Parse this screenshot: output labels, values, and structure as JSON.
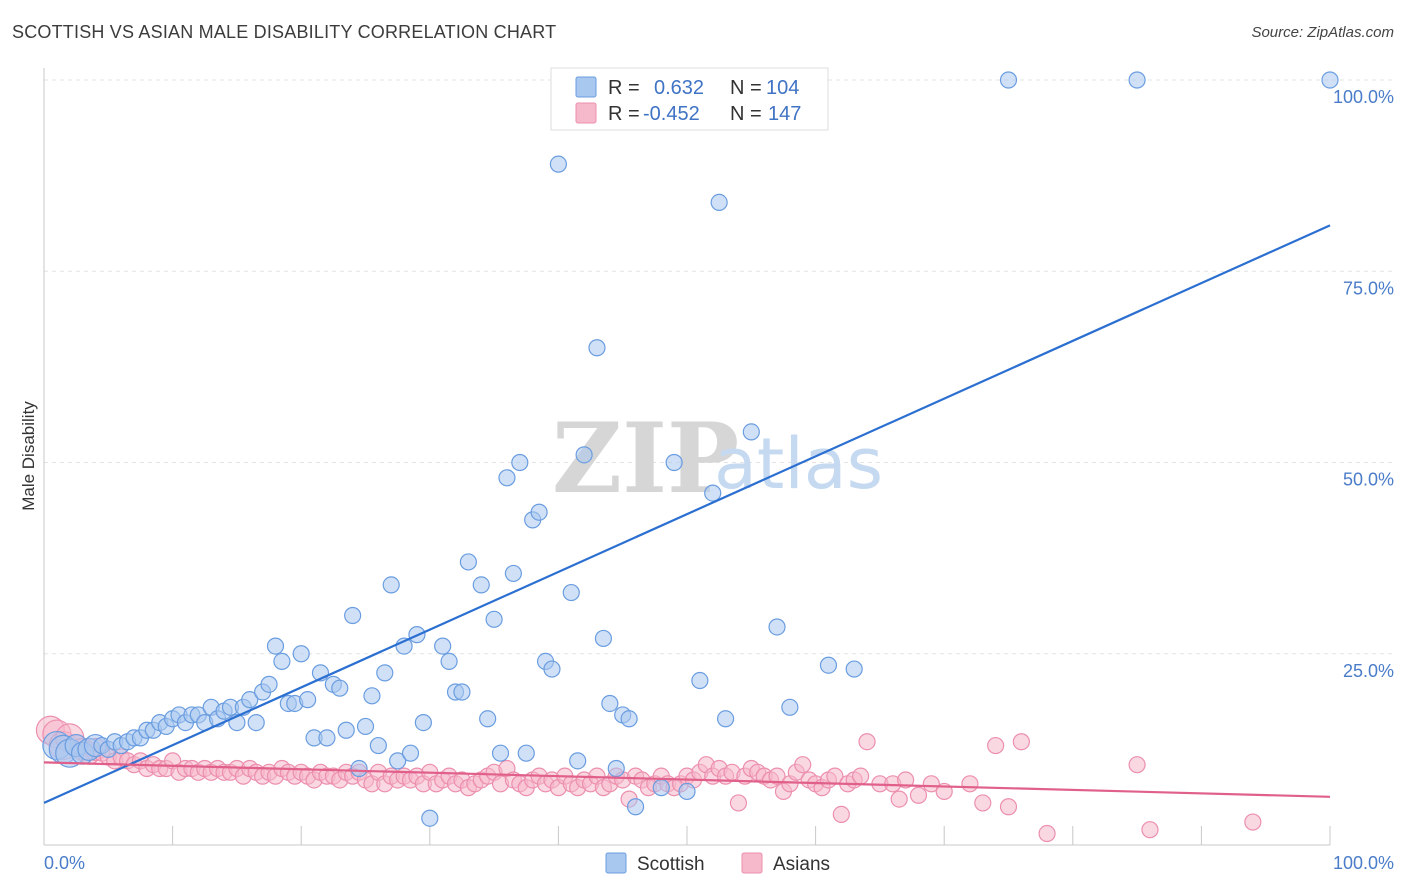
{
  "title": "SCOTTISH VS ASIAN MALE DISABILITY CORRELATION CHART",
  "source": "Source: ZipAtlas.com",
  "watermark": {
    "left": "ZIP",
    "right": "atlas"
  },
  "legend_top": [
    {
      "r_label": "R =",
      "r_value": "0.632",
      "n_label": "N =",
      "n_value": "104",
      "color": "#a9c8f0"
    },
    {
      "r_label": "R =",
      "r_value": "-0.452",
      "n_label": "N =",
      "n_value": "147",
      "color": "#f6b8cb"
    }
  ],
  "chart_data": {
    "type": "scatter",
    "title": "SCOTTISH VS ASIAN MALE DISABILITY CORRELATION CHART",
    "xlabel": "",
    "ylabel": "Male Disability",
    "xlim": [
      0,
      100
    ],
    "ylim": [
      0,
      100
    ],
    "x_tick_labels": [
      "0.0%",
      "100.0%"
    ],
    "y_tick_labels": [
      "100.0%",
      "75.0%",
      "50.0%",
      "25.0%"
    ],
    "y_ticks": [
      100,
      75,
      50,
      25
    ],
    "grid": true,
    "legend": "bottom-center",
    "series": [
      {
        "name": "Scottish",
        "color": "#6a9de0",
        "fill": "#a9c8f0",
        "trend": {
          "x": [
            0,
            100
          ],
          "y": [
            5.5,
            81
          ]
        },
        "trend_color": "#2b6fd1",
        "points": [
          [
            1,
            13
          ],
          [
            1.5,
            12.5
          ],
          [
            2,
            12
          ],
          [
            2.5,
            13
          ],
          [
            3,
            12
          ],
          [
            3.5,
            12.5
          ],
          [
            4,
            13
          ],
          [
            4.5,
            13
          ],
          [
            5,
            12.5
          ],
          [
            5.5,
            13.5
          ],
          [
            6,
            13
          ],
          [
            6.5,
            13.5
          ],
          [
            7,
            14
          ],
          [
            7.5,
            14
          ],
          [
            8,
            15
          ],
          [
            8.5,
            15
          ],
          [
            9,
            16
          ],
          [
            9.5,
            15.5
          ],
          [
            10,
            16.5
          ],
          [
            10.5,
            17
          ],
          [
            11,
            16
          ],
          [
            11.5,
            17
          ],
          [
            12,
            17
          ],
          [
            12.5,
            16
          ],
          [
            13,
            18
          ],
          [
            13.5,
            16.5
          ],
          [
            14,
            17.5
          ],
          [
            14.5,
            18
          ],
          [
            15,
            16
          ],
          [
            15.5,
            18
          ],
          [
            16,
            19
          ],
          [
            16.5,
            16
          ],
          [
            17,
            20
          ],
          [
            17.5,
            21
          ],
          [
            18,
            26
          ],
          [
            18.5,
            24
          ],
          [
            19,
            18.5
          ],
          [
            19.5,
            18.5
          ],
          [
            20,
            25
          ],
          [
            20.5,
            19
          ],
          [
            21,
            14
          ],
          [
            21.5,
            22.5
          ],
          [
            22,
            14
          ],
          [
            22.5,
            21
          ],
          [
            23,
            20.5
          ],
          [
            23.5,
            15
          ],
          [
            24,
            30
          ],
          [
            24.5,
            10
          ],
          [
            25,
            15.5
          ],
          [
            25.5,
            19.5
          ],
          [
            26,
            13
          ],
          [
            26.5,
            22.5
          ],
          [
            27,
            34
          ],
          [
            27.5,
            11
          ],
          [
            28,
            26
          ],
          [
            28.5,
            12
          ],
          [
            29,
            27.5
          ],
          [
            29.5,
            16
          ],
          [
            30,
            3.5
          ],
          [
            31,
            26
          ],
          [
            31.5,
            24
          ],
          [
            32,
            20
          ],
          [
            32.5,
            20
          ],
          [
            33,
            37
          ],
          [
            34,
            34
          ],
          [
            34.5,
            16.5
          ],
          [
            35,
            29.5
          ],
          [
            35.5,
            12
          ],
          [
            36,
            48
          ],
          [
            36.5,
            35.5
          ],
          [
            37,
            50
          ],
          [
            37.5,
            12
          ],
          [
            38,
            42.5
          ],
          [
            38.5,
            43.5
          ],
          [
            39,
            24
          ],
          [
            39.5,
            23
          ],
          [
            40,
            89
          ],
          [
            41,
            33
          ],
          [
            41.5,
            11
          ],
          [
            42,
            51
          ],
          [
            43,
            65
          ],
          [
            43.5,
            27
          ],
          [
            44,
            18.5
          ],
          [
            44.5,
            10
          ],
          [
            45,
            17
          ],
          [
            45.5,
            16.5
          ],
          [
            46,
            5
          ],
          [
            48,
            7.5
          ],
          [
            49,
            50
          ],
          [
            50,
            7
          ],
          [
            51,
            21.5
          ],
          [
            52,
            46
          ],
          [
            52.5,
            84
          ],
          [
            53,
            16.5
          ],
          [
            55,
            54
          ],
          [
            57,
            28.5
          ],
          [
            58,
            18
          ],
          [
            61,
            23.5
          ],
          [
            63,
            23
          ],
          [
            75,
            100
          ],
          [
            85,
            100
          ],
          [
            100,
            100
          ]
        ]
      },
      {
        "name": "Asians",
        "color": "#ec8fae",
        "fill": "#f6b8cb",
        "trend": {
          "x": [
            0,
            100
          ],
          "y": [
            10.8,
            6.3
          ]
        },
        "trend_color": "#e0608a",
        "points": [
          [
            0.5,
            15
          ],
          [
            1,
            14.5
          ],
          [
            1.5,
            13
          ],
          [
            2,
            14
          ],
          [
            2.5,
            13
          ],
          [
            3,
            12.5
          ],
          [
            3.5,
            12
          ],
          [
            4,
            12.5
          ],
          [
            4.5,
            12
          ],
          [
            5,
            11.5
          ],
          [
            5.5,
            11
          ],
          [
            6,
            11.5
          ],
          [
            6.5,
            11
          ],
          [
            7,
            10.5
          ],
          [
            7.5,
            11
          ],
          [
            8,
            10
          ],
          [
            8.5,
            10.5
          ],
          [
            9,
            10
          ],
          [
            9.5,
            10
          ],
          [
            10,
            11
          ],
          [
            10.5,
            9.5
          ],
          [
            11,
            10
          ],
          [
            11.5,
            10
          ],
          [
            12,
            9.5
          ],
          [
            12.5,
            10
          ],
          [
            13,
            9.5
          ],
          [
            13.5,
            10
          ],
          [
            14,
            9.5
          ],
          [
            14.5,
            9.5
          ],
          [
            15,
            10
          ],
          [
            15.5,
            9
          ],
          [
            16,
            10
          ],
          [
            16.5,
            9.5
          ],
          [
            17,
            9
          ],
          [
            17.5,
            9.5
          ],
          [
            18,
            9
          ],
          [
            18.5,
            10
          ],
          [
            19,
            9.5
          ],
          [
            19.5,
            9
          ],
          [
            20,
            9.5
          ],
          [
            20.5,
            9
          ],
          [
            21,
            8.5
          ],
          [
            21.5,
            9.5
          ],
          [
            22,
            9
          ],
          [
            22.5,
            9
          ],
          [
            23,
            8.5
          ],
          [
            23.5,
            9.5
          ],
          [
            24,
            9
          ],
          [
            24.5,
            9.5
          ],
          [
            25,
            8.5
          ],
          [
            25.5,
            8
          ],
          [
            26,
            9.5
          ],
          [
            26.5,
            8
          ],
          [
            27,
            9
          ],
          [
            27.5,
            8.5
          ],
          [
            28,
            9
          ],
          [
            28.5,
            8.5
          ],
          [
            29,
            9
          ],
          [
            29.5,
            8
          ],
          [
            30,
            9.5
          ],
          [
            30.5,
            8
          ],
          [
            31,
            8.5
          ],
          [
            31.5,
            9
          ],
          [
            32,
            8
          ],
          [
            32.5,
            8.5
          ],
          [
            33,
            7.5
          ],
          [
            33.5,
            8
          ],
          [
            34,
            8.5
          ],
          [
            34.5,
            9
          ],
          [
            35,
            9.5
          ],
          [
            35.5,
            8
          ],
          [
            36,
            10
          ],
          [
            36.5,
            8.5
          ],
          [
            37,
            8
          ],
          [
            37.5,
            7.5
          ],
          [
            38,
            8.5
          ],
          [
            38.5,
            9
          ],
          [
            39,
            8
          ],
          [
            39.5,
            8.5
          ],
          [
            40,
            7.5
          ],
          [
            40.5,
            9
          ],
          [
            41,
            8
          ],
          [
            41.5,
            7.5
          ],
          [
            42,
            8.5
          ],
          [
            42.5,
            8
          ],
          [
            43,
            9
          ],
          [
            43.5,
            7.5
          ],
          [
            44,
            8
          ],
          [
            44.5,
            9
          ],
          [
            45,
            8.5
          ],
          [
            45.5,
            6
          ],
          [
            46,
            9
          ],
          [
            46.5,
            8.5
          ],
          [
            47,
            7.5
          ],
          [
            47.5,
            8
          ],
          [
            48,
            9
          ],
          [
            48.5,
            8
          ],
          [
            49,
            7.5
          ],
          [
            49.5,
            8
          ],
          [
            50,
            9
          ],
          [
            50.5,
            8.5
          ],
          [
            51,
            9.5
          ],
          [
            51.5,
            10.5
          ],
          [
            52,
            9
          ],
          [
            52.5,
            10
          ],
          [
            53,
            9
          ],
          [
            53.5,
            9.5
          ],
          [
            54,
            5.5
          ],
          [
            54.5,
            9
          ],
          [
            55,
            10
          ],
          [
            55.5,
            9.5
          ],
          [
            56,
            9
          ],
          [
            56.5,
            8.5
          ],
          [
            57,
            9
          ],
          [
            57.5,
            7
          ],
          [
            58,
            8
          ],
          [
            58.5,
            9.5
          ],
          [
            59,
            10.5
          ],
          [
            59.5,
            8.5
          ],
          [
            60,
            8
          ],
          [
            60.5,
            7.5
          ],
          [
            61,
            8.5
          ],
          [
            61.5,
            9
          ],
          [
            62,
            4
          ],
          [
            62.5,
            8
          ],
          [
            63,
            8.5
          ],
          [
            63.5,
            9
          ],
          [
            64,
            13.5
          ],
          [
            65,
            8
          ],
          [
            66,
            8
          ],
          [
            66.5,
            6
          ],
          [
            67,
            8.5
          ],
          [
            68,
            6.5
          ],
          [
            69,
            8
          ],
          [
            70,
            7
          ],
          [
            72,
            8
          ],
          [
            73,
            5.5
          ],
          [
            74,
            13
          ],
          [
            75,
            5
          ],
          [
            76,
            13.5
          ],
          [
            78,
            1.5
          ],
          [
            85,
            10.5
          ],
          [
            86,
            2
          ],
          [
            94,
            3
          ]
        ]
      }
    ]
  },
  "bottom_legend": [
    "Scottish",
    "Asians"
  ]
}
